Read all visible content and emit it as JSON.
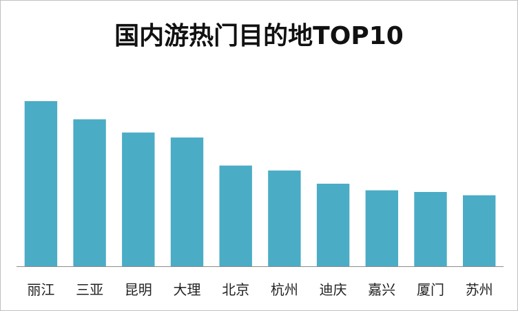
{
  "chart_data": {
    "type": "bar",
    "title": "国内游热门目的地TOP10",
    "categories": [
      "丽江",
      "三亚",
      "昆明",
      "大理",
      "北京",
      "杭州",
      "迪庆",
      "嘉兴",
      "厦门",
      "苏州"
    ],
    "values": [
      100,
      89,
      81,
      78,
      61,
      58,
      50,
      46,
      45,
      43
    ],
    "xlabel": "",
    "ylabel": "",
    "ylim": [
      0,
      100
    ],
    "grid": false,
    "legend": "none",
    "bar_color": "#4BACC6",
    "axis_color": "#8c8c8c"
  }
}
